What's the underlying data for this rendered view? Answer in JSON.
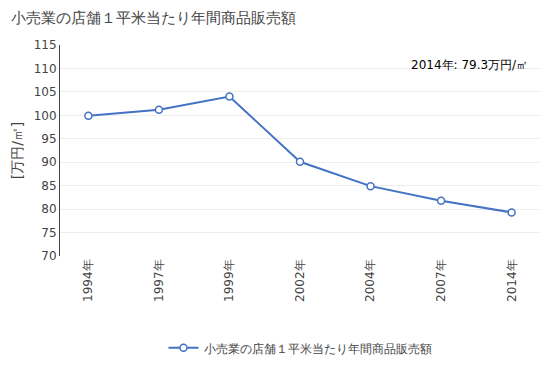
{
  "chart_data": {
    "type": "line",
    "title": "小売業の店舗１平米当たり年間商品販売額",
    "ylabel": "[万円/㎡]",
    "categories": [
      "1994年",
      "1997年",
      "1999年",
      "2002年",
      "2004年",
      "2007年",
      "2014年"
    ],
    "series": [
      {
        "name": "小売業の店舗１平米当たり年間商品販売額",
        "color": "#4472C4",
        "marker": "circle",
        "values": [
          99.9,
          101.2,
          104.0,
          90.1,
          84.9,
          81.8,
          79.3
        ]
      }
    ],
    "ylim": [
      70,
      115
    ],
    "yticks": [
      70,
      75,
      80,
      85,
      90,
      95,
      100,
      105,
      110,
      115
    ],
    "annotation": "2014年: 79.3万円/㎡",
    "grid": true,
    "legend": "bottom"
  }
}
